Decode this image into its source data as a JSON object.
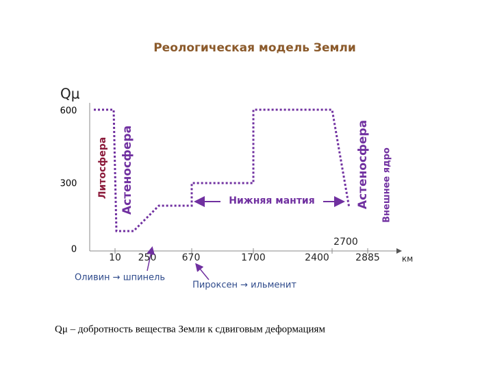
{
  "title": "Реологическая модель Земли",
  "y_axis": {
    "label": "Qμ",
    "ticks": [
      "600",
      "300",
      "0"
    ]
  },
  "x_axis": {
    "ticks": [
      "10",
      "250",
      "670",
      "1700",
      "2400",
      "2700",
      "2885"
    ],
    "unit": "км"
  },
  "zones": {
    "lithosphere": "Литосфера",
    "asthenosphere_upper": "Астеносфера",
    "lower_mantle": "Нижняя мантия",
    "asthenosphere_lower": "Астеносфера",
    "outer_core": "Внешнее ядро"
  },
  "transitions": [
    "Оливин → шпинель",
    "Пироксен → ильменит"
  ],
  "footnote": "Qμ – добротность вещества Земли к сдвиговым деформациям"
}
